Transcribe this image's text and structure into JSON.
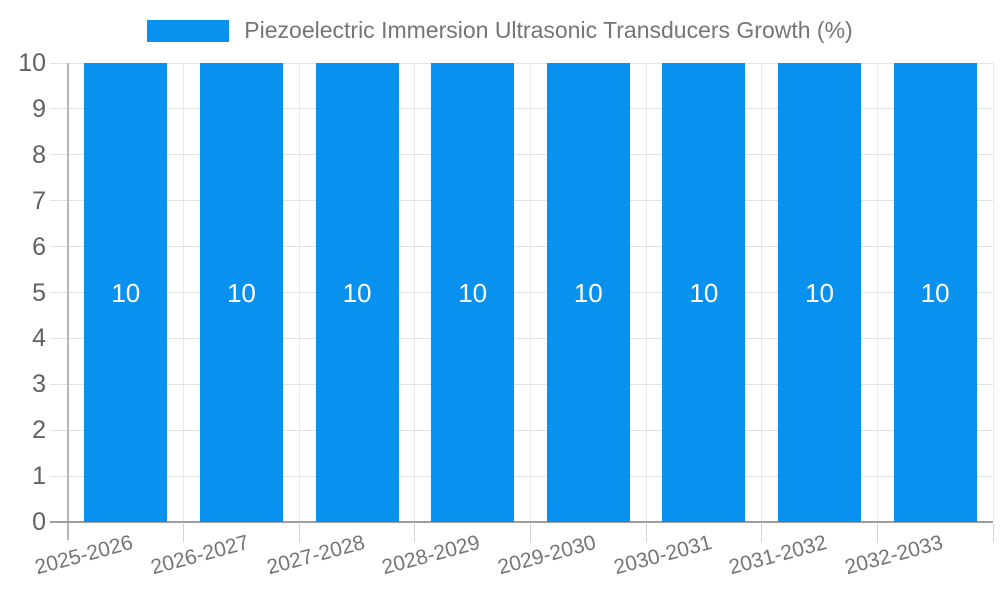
{
  "page": {
    "background": "#ffffff"
  },
  "legend": {
    "label": "Piezoelectric Immersion Ultrasonic Transducers Growth (%)"
  },
  "chart_data": {
    "type": "bar",
    "title": "Piezoelectric Immersion Ultrasonic Transducers Growth (%)",
    "categories": [
      "2025-2026",
      "2026-2027",
      "2027-2028",
      "2028-2029",
      "2029-2030",
      "2030-2031",
      "2031-2032",
      "2032-2033"
    ],
    "series": [
      {
        "name": "Piezoelectric Immersion Ultrasonic Transducers Growth (%)",
        "values": [
          10,
          10,
          10,
          10,
          10,
          10,
          10,
          10
        ],
        "color": "#0991f0"
      }
    ],
    "value_labels": [
      "10",
      "10",
      "10",
      "10",
      "10",
      "10",
      "10",
      "10"
    ],
    "value_label_color": "#ffffff",
    "xlabel": "",
    "ylabel": "",
    "ylim": [
      0,
      10
    ],
    "yticks": [
      0,
      1,
      2,
      3,
      4,
      5,
      6,
      7,
      8,
      9,
      10
    ],
    "grid": true,
    "legend_position": "top-center",
    "x_tick_rotation_deg": -15
  }
}
